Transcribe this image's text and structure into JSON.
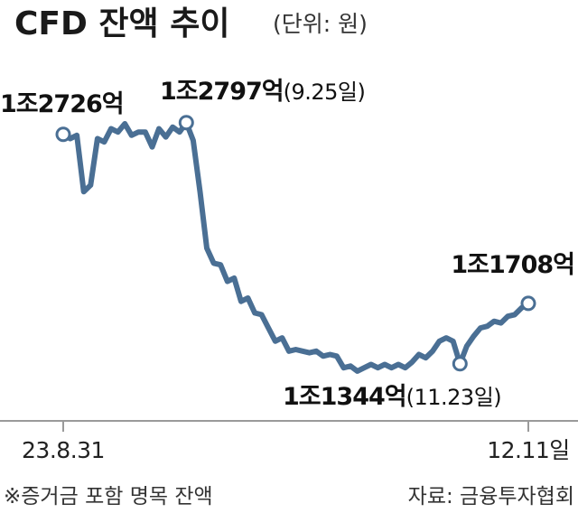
{
  "title": "CFD 잔액 추이",
  "unit": "(단위: 원)",
  "footnote": "※증거금 포함 명목 잔액",
  "source": "자료: 금융투자협회",
  "colors": {
    "line": "#4a6f94",
    "marker_fill": "#ffffff",
    "axis": "#9a9a9a"
  },
  "annotations": [
    {
      "value": "1조2726억",
      "date": ""
    },
    {
      "value": "1조2797억",
      "date": "(9.25일)"
    },
    {
      "value": "1조1344억",
      "date": "(11.23일)"
    },
    {
      "value": "1조1708억",
      "date": ""
    }
  ],
  "chart_data": {
    "type": "line",
    "title": "CFD 잔액 추이",
    "unit": "원 (억)",
    "x_ticks": [
      "23.8.31",
      "12.11일"
    ],
    "ylim": [
      11000,
      13100
    ],
    "grid": false,
    "highlight_indices": [
      0,
      18,
      58,
      68
    ],
    "series": [
      {
        "values": [
          12726,
          12700,
          12720,
          12380,
          12420,
          12700,
          12680,
          12760,
          12740,
          12790,
          12720,
          12740,
          12740,
          12650,
          12760,
          12710,
          12770,
          12740,
          12797,
          12690,
          12380,
          12040,
          11950,
          11940,
          11840,
          11860,
          11720,
          11740,
          11650,
          11640,
          11560,
          11480,
          11500,
          11420,
          11430,
          11420,
          11410,
          11420,
          11390,
          11400,
          11390,
          11320,
          11330,
          11300,
          11320,
          11340,
          11320,
          11340,
          11320,
          11340,
          11320,
          11354,
          11400,
          11380,
          11420,
          11480,
          11500,
          11480,
          11344,
          11450,
          11510,
          11560,
          11570,
          11600,
          11590,
          11630,
          11640,
          11680,
          11708
        ]
      }
    ]
  }
}
